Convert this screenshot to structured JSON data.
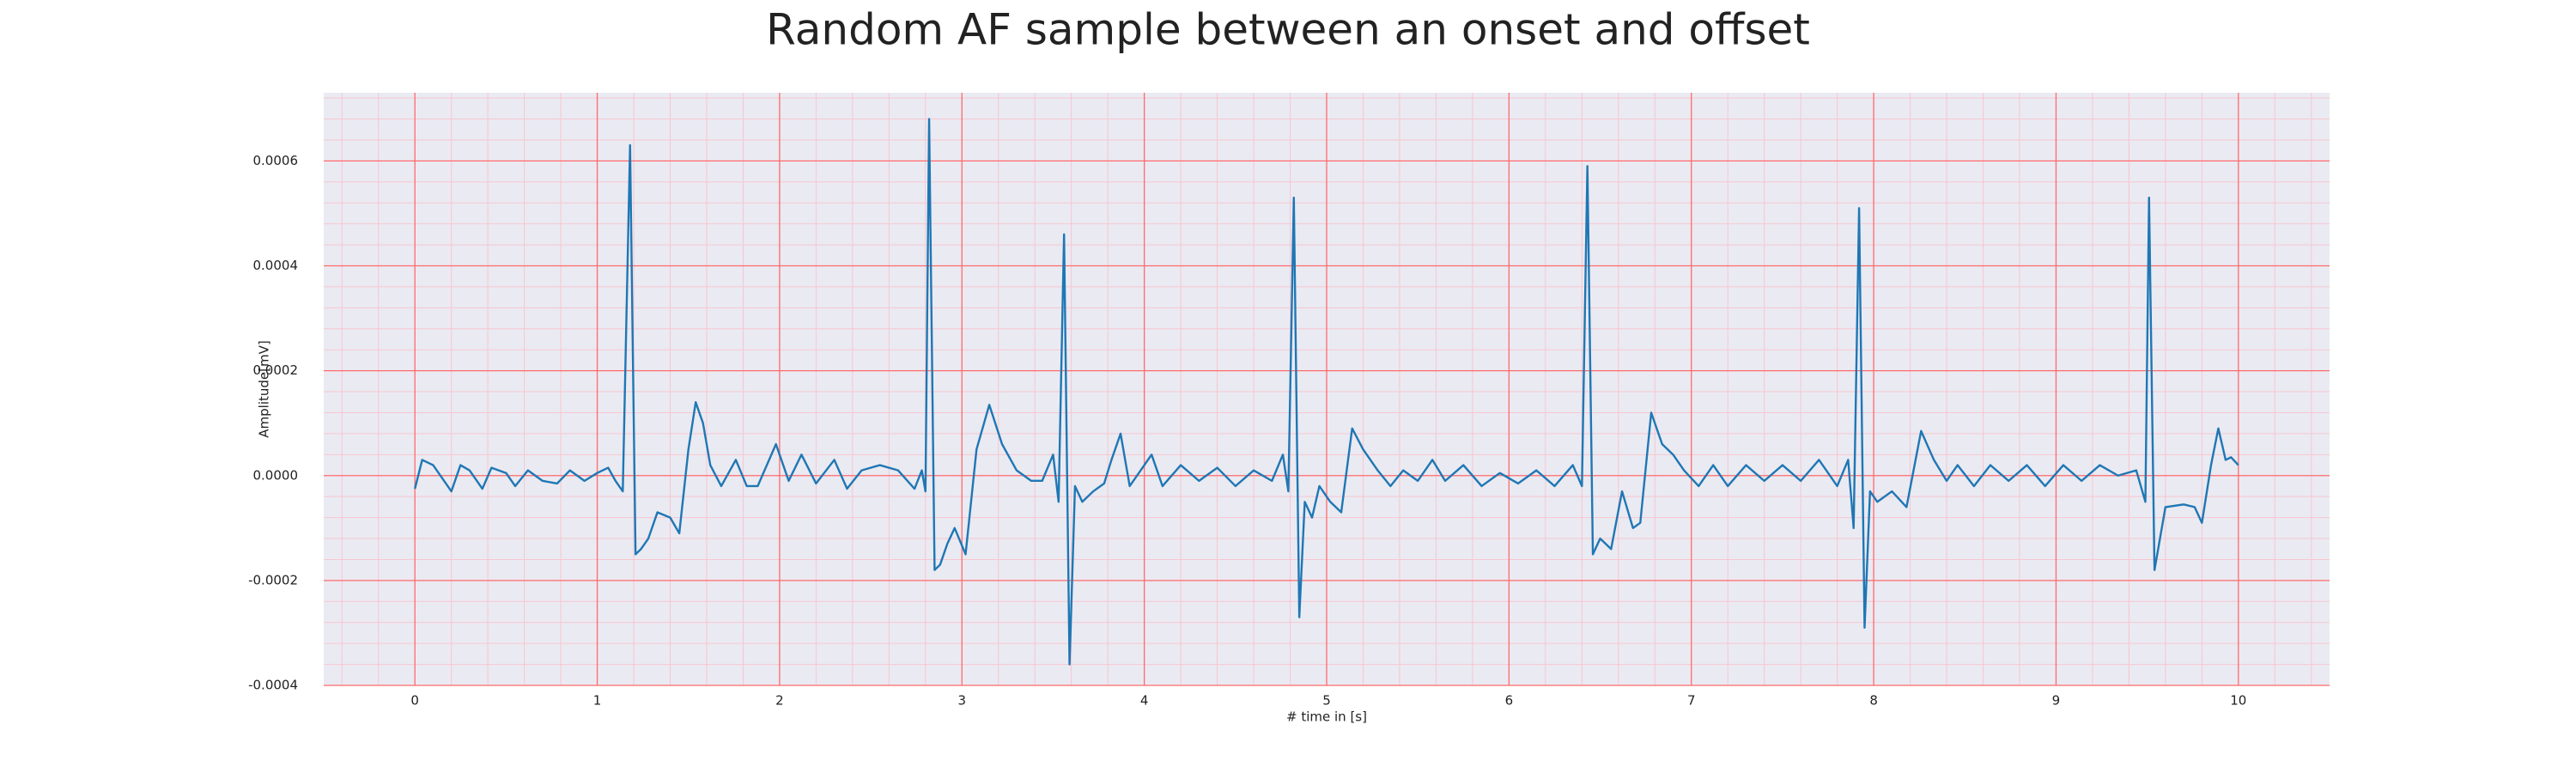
{
  "chart_data": {
    "type": "line",
    "title": "Random AF sample between an onset and offset",
    "xlabel": "# time in [s]",
    "ylabel": "Amplitude[mV]",
    "xlim": [
      -0.5,
      10.5
    ],
    "ylim": [
      -0.0004,
      0.00073
    ],
    "xticks": [
      0,
      1,
      2,
      3,
      4,
      5,
      6,
      7,
      8,
      9,
      10
    ],
    "yticks": [
      {
        "value": -0.0004,
        "label": "-0.0004"
      },
      {
        "value": -0.0002,
        "label": "-0.0002"
      },
      {
        "value": 0,
        "label": "0.0000"
      },
      {
        "value": 0.0002,
        "label": "0.0002"
      },
      {
        "value": 0.0004,
        "label": "0.0004"
      },
      {
        "value": 0.0006,
        "label": "0.0006"
      }
    ],
    "grid": true,
    "grid_color": "#ff6b6b",
    "minor_grid": true,
    "minor_grid_color": "#f7c6cf",
    "minor_divisions": 5,
    "background": "#eaeaf2",
    "series": [
      {
        "color": "#1f77b4",
        "x": [
          0,
          0.04,
          0.1,
          0.2,
          0.25,
          0.3,
          0.37,
          0.42,
          0.5,
          0.55,
          0.62,
          0.7,
          0.78,
          0.85,
          0.93,
          1.0,
          1.06,
          1.1,
          1.14,
          1.18,
          1.21,
          1.24,
          1.28,
          1.33,
          1.4,
          1.45,
          1.5,
          1.54,
          1.58,
          1.62,
          1.68,
          1.76,
          1.82,
          1.88,
          1.98,
          2.05,
          2.12,
          2.2,
          2.3,
          2.37,
          2.45,
          2.55,
          2.65,
          2.74,
          2.78,
          2.8,
          2.82,
          2.85,
          2.88,
          2.92,
          2.96,
          3.02,
          3.08,
          3.15,
          3.22,
          3.3,
          3.38,
          3.44,
          3.5,
          3.53,
          3.56,
          3.59,
          3.62,
          3.66,
          3.72,
          3.78,
          3.82,
          3.87,
          3.92,
          3.98,
          4.04,
          4.1,
          4.2,
          4.3,
          4.4,
          4.5,
          4.6,
          4.7,
          4.76,
          4.79,
          4.82,
          4.85,
          4.88,
          4.92,
          4.96,
          5.02,
          5.08,
          5.14,
          5.2,
          5.28,
          5.35,
          5.42,
          5.5,
          5.58,
          5.65,
          5.75,
          5.85,
          5.95,
          6.05,
          6.15,
          6.25,
          6.35,
          6.4,
          6.43,
          6.46,
          6.5,
          6.56,
          6.62,
          6.68,
          6.72,
          6.78,
          6.84,
          6.9,
          6.96,
          7.04,
          7.12,
          7.2,
          7.3,
          7.4,
          7.5,
          7.6,
          7.7,
          7.8,
          7.86,
          7.89,
          7.92,
          7.95,
          7.98,
          8.02,
          8.1,
          8.18,
          8.26,
          8.33,
          8.4,
          8.46,
          8.55,
          8.64,
          8.74,
          8.84,
          8.94,
          9.04,
          9.14,
          9.24,
          9.34,
          9.44,
          9.49,
          9.51,
          9.54,
          9.57,
          9.6,
          9.7,
          9.76,
          9.8,
          9.85,
          9.89,
          9.93,
          9.96,
          10.0
        ],
        "values": [
          -2.5e-05,
          3e-05,
          2e-05,
          -3e-05,
          2e-05,
          1e-05,
          -2.5e-05,
          1.5e-05,
          5e-06,
          -2e-05,
          1e-05,
          -1e-05,
          -1.5e-05,
          1e-05,
          -1e-05,
          5e-06,
          1.5e-05,
          -1e-05,
          -3e-05,
          0.00063,
          -0.00015,
          -0.00014,
          -0.00012,
          -7e-05,
          -8e-05,
          -0.00011,
          5e-05,
          0.00014,
          0.0001,
          2e-05,
          -2e-05,
          3e-05,
          -2e-05,
          -2e-05,
          6e-05,
          -1e-05,
          4e-05,
          -1.5e-05,
          3e-05,
          -2.5e-05,
          1e-05,
          2e-05,
          1e-05,
          -2.5e-05,
          1e-05,
          -3e-05,
          0.00068,
          -0.00018,
          -0.00017,
          -0.00013,
          -0.0001,
          -0.00015,
          5e-05,
          0.000135,
          6e-05,
          1e-05,
          -1e-05,
          -1e-05,
          4e-05,
          -5e-05,
          0.00046,
          -0.00036,
          -2e-05,
          -5e-05,
          -3e-05,
          -1.5e-05,
          3e-05,
          8e-05,
          -2e-05,
          1e-05,
          4e-05,
          -2e-05,
          2e-05,
          -1e-05,
          1.5e-05,
          -2e-05,
          1e-05,
          -1e-05,
          4e-05,
          -3e-05,
          0.00053,
          -0.00027,
          -5e-05,
          -8e-05,
          -2e-05,
          -5e-05,
          -7e-05,
          9e-05,
          5e-05,
          1e-05,
          -2e-05,
          1e-05,
          -1e-05,
          3e-05,
          -1e-05,
          2e-05,
          -2e-05,
          5e-06,
          -1.5e-05,
          1e-05,
          -2e-05,
          2e-05,
          -2e-05,
          0.00059,
          -0.00015,
          -0.00012,
          -0.00014,
          -3e-05,
          -0.0001,
          -9e-05,
          0.00012,
          6e-05,
          4e-05,
          1e-05,
          -2e-05,
          2e-05,
          -2e-05,
          2e-05,
          -1e-05,
          2e-05,
          -1e-05,
          3e-05,
          -2e-05,
          3e-05,
          -0.0001,
          0.00051,
          -0.00029,
          -3e-05,
          -5e-05,
          -3e-05,
          -6e-05,
          8.5e-05,
          3e-05,
          -1e-05,
          2e-05,
          -2e-05,
          2e-05,
          -1e-05,
          2e-05,
          -2e-05,
          2e-05,
          -1e-05,
          2e-05,
          0.0,
          1e-05,
          -5e-05,
          0.00053,
          -0.00018,
          -0.00012,
          -6e-05,
          -5.5e-05,
          -6e-05,
          -9e-05,
          2e-05,
          9e-05,
          3e-05,
          3.5e-05,
          2e-05
        ]
      }
    ]
  }
}
